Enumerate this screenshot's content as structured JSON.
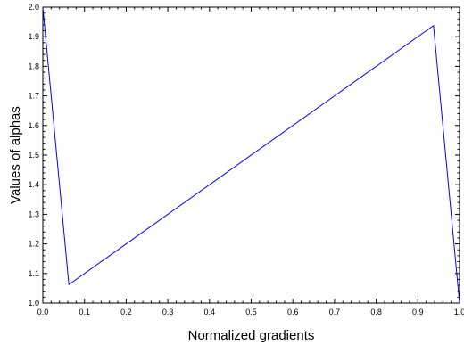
{
  "chart_data": {
    "type": "line",
    "title": "",
    "xlabel": "Normalized gradients",
    "ylabel": "Values of alphas",
    "xlim": [
      0.0,
      1.0
    ],
    "ylim": [
      1.0,
      2.0
    ],
    "grid": false,
    "x_ticks": [
      {
        "value": 0.0,
        "label": "0.0"
      },
      {
        "value": 0.1,
        "label": "0.1"
      },
      {
        "value": 0.2,
        "label": "0.2"
      },
      {
        "value": 0.3,
        "label": "0.3"
      },
      {
        "value": 0.4,
        "label": "0.4"
      },
      {
        "value": 0.5,
        "label": "0.5"
      },
      {
        "value": 0.6,
        "label": "0.6"
      },
      {
        "value": 0.7,
        "label": "0.7"
      },
      {
        "value": 0.8,
        "label": "0.8"
      },
      {
        "value": 0.9,
        "label": "0.9"
      },
      {
        "value": 1.0,
        "label": "1.0"
      }
    ],
    "y_ticks": [
      {
        "value": 1.0,
        "label": "1.0"
      },
      {
        "value": 1.1,
        "label": "1.1"
      },
      {
        "value": 1.2,
        "label": "1.2"
      },
      {
        "value": 1.3,
        "label": "1.3"
      },
      {
        "value": 1.4,
        "label": "1.4"
      },
      {
        "value": 1.5,
        "label": "1.5"
      },
      {
        "value": 1.6,
        "label": "1.6"
      },
      {
        "value": 1.7,
        "label": "1.7"
      },
      {
        "value": 1.8,
        "label": "1.8"
      },
      {
        "value": 1.9,
        "label": "1.9"
      },
      {
        "value": 2.0,
        "label": "2.0"
      }
    ],
    "series": [
      {
        "color": "#0000ff",
        "x": [
          0.0,
          0.0625,
          0.9375,
          1.0
        ],
        "y": [
          2.0,
          1.0625,
          1.9375,
          1.0
        ]
      }
    ]
  }
}
